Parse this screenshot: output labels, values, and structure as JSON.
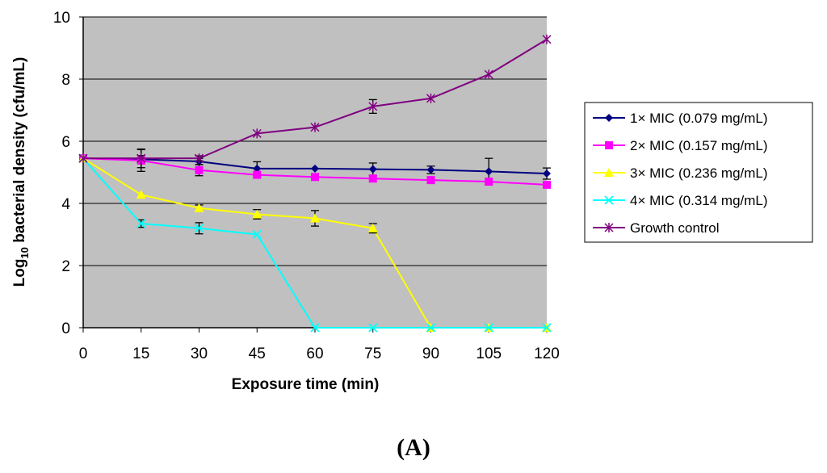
{
  "chart_data": {
    "type": "line",
    "xlabel": "Exposure time (min)",
    "ylabel": {
      "prefix": "Log",
      "sub": "10",
      "suffix": " bacterial density (cfu/mL)"
    },
    "panel_label": "(A)",
    "x": [
      0,
      15,
      30,
      45,
      60,
      75,
      90,
      105,
      120
    ],
    "xlim": [
      0,
      120
    ],
    "ylim": [
      0,
      10
    ],
    "x_ticks": [
      0,
      15,
      30,
      45,
      60,
      75,
      90,
      105,
      120
    ],
    "y_ticks": [
      0,
      2,
      4,
      6,
      8,
      10
    ],
    "grid": true,
    "legend_position": "right",
    "series": [
      {
        "name": "1× MIC (0.079 mg/mL)",
        "color": "#000080",
        "marker": "diamond",
        "values": [
          5.45,
          5.42,
          5.35,
          5.12,
          5.12,
          5.1,
          5.08,
          5.03,
          4.96
        ],
        "errors": [
          0,
          0.12,
          0.1,
          0.22,
          0,
          0.2,
          0.12,
          0.42,
          0.18
        ]
      },
      {
        "name": "2× MIC (0.157 mg/mL)",
        "color": "#ff00ff",
        "marker": "square",
        "values": [
          5.45,
          5.38,
          5.07,
          4.92,
          4.85,
          4.8,
          4.75,
          4.7,
          4.6
        ],
        "errors": [
          0,
          0.35,
          0.18,
          0,
          0,
          0,
          0,
          0,
          0
        ]
      },
      {
        "name": "3× MIC (0.236 mg/mL)",
        "color": "#ffff00",
        "marker": "triangle",
        "values": [
          5.45,
          4.28,
          3.85,
          3.65,
          3.52,
          3.2,
          0,
          0,
          0
        ],
        "errors": [
          0,
          0,
          0.1,
          0.15,
          0.25,
          0.15,
          0,
          0,
          0
        ]
      },
      {
        "name": "4× MIC (0.314 mg/mL)",
        "color": "#00ffff",
        "marker": "x",
        "values": [
          5.45,
          3.35,
          3.2,
          3.0,
          0,
          0,
          0,
          0,
          0
        ],
        "errors": [
          0,
          0.12,
          0.18,
          0,
          0,
          0,
          0,
          0,
          0
        ]
      },
      {
        "name": "Growth control",
        "color": "#800080",
        "marker": "asterisk",
        "values": [
          5.45,
          5.45,
          5.45,
          6.25,
          6.45,
          7.12,
          7.38,
          8.15,
          9.28
        ],
        "errors": [
          0,
          0.3,
          0.08,
          0,
          0,
          0.22,
          0,
          0,
          0
        ]
      }
    ]
  }
}
